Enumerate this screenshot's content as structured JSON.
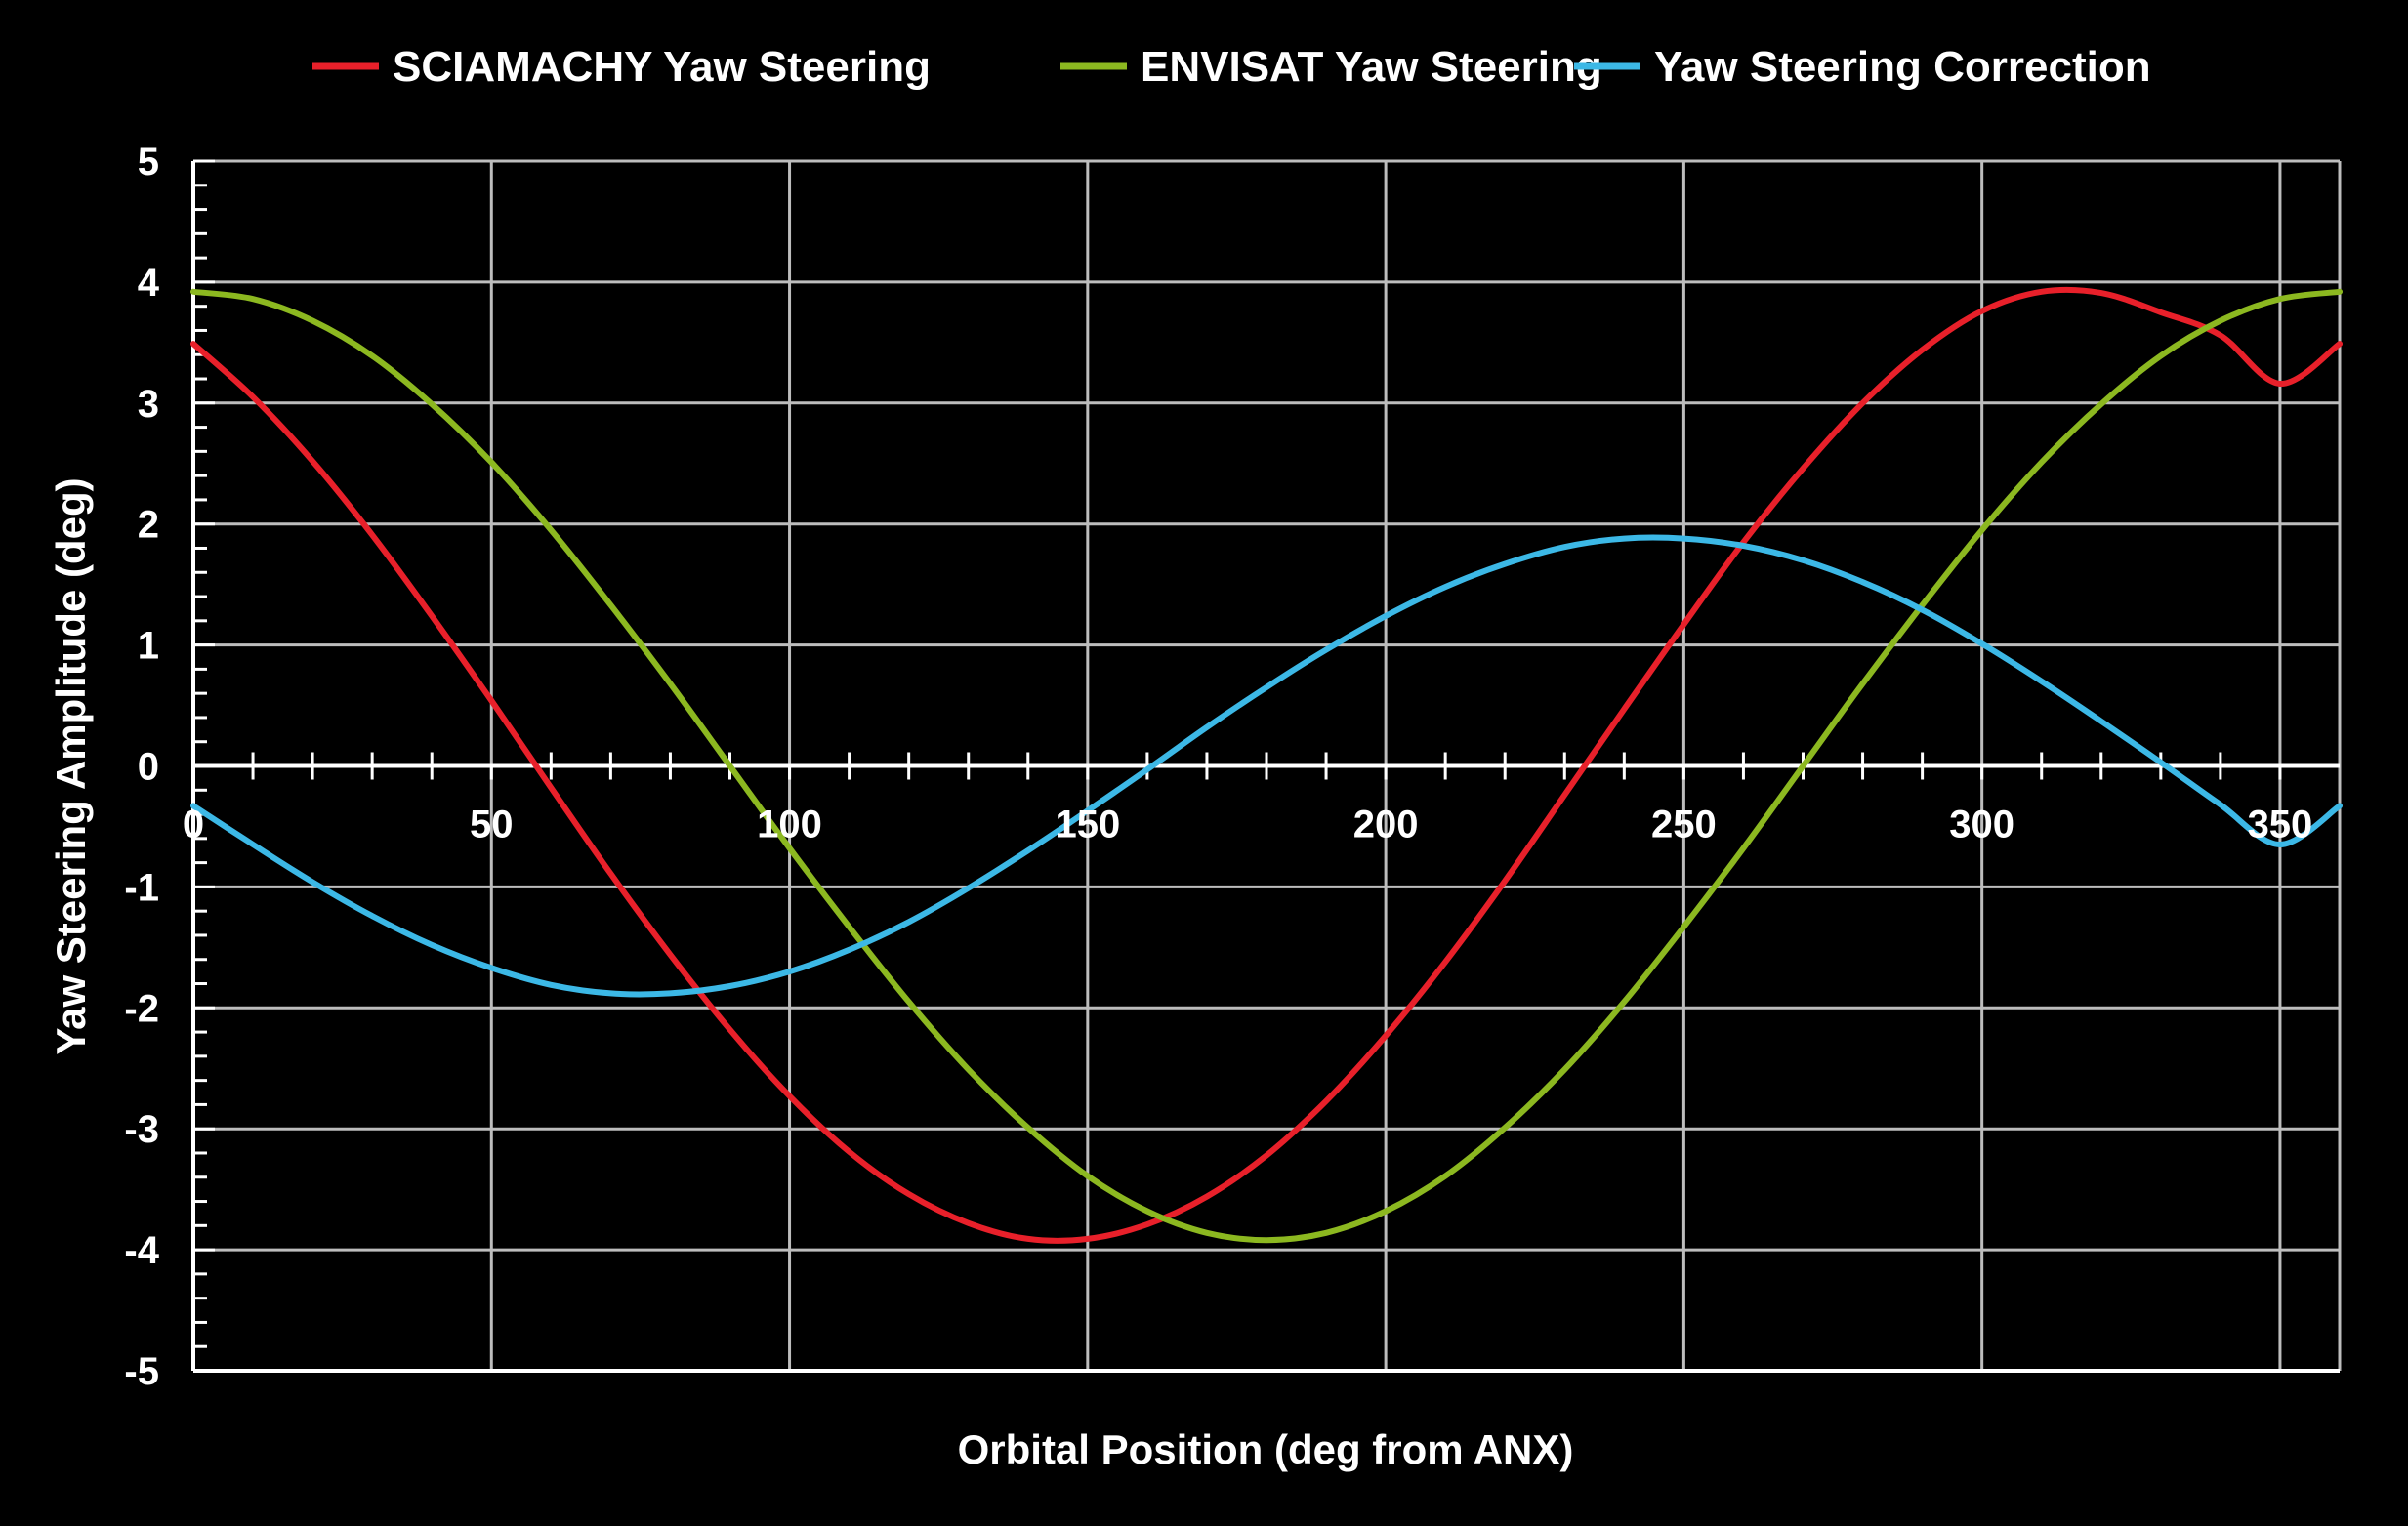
{
  "chart_data": {
    "type": "line",
    "title": "",
    "xlabel": "Orbital Position (deg from ANX)",
    "ylabel": "Yaw Steering Amplitude (deg)",
    "xlim": [
      0,
      360
    ],
    "ylim": [
      -5,
      5
    ],
    "x_ticks": [
      "0",
      "50",
      "100",
      "150",
      "200",
      "250",
      "300",
      "350"
    ],
    "y_ticks": [
      "5",
      "4",
      "3",
      "2",
      "1",
      "0",
      "-1",
      "-2",
      "-3",
      "-4",
      "-5"
    ],
    "grid": true,
    "legend_position": "top",
    "x": [
      0,
      10,
      20,
      30,
      40,
      50,
      60,
      70,
      80,
      90,
      100,
      110,
      120,
      130,
      140,
      150,
      160,
      170,
      180,
      190,
      200,
      210,
      220,
      230,
      240,
      250,
      260,
      270,
      280,
      290,
      300,
      310,
      320,
      330,
      340,
      350,
      360
    ],
    "series": [
      {
        "name": "SCIAMACHY Yaw Steering",
        "color": "#e8202a",
        "values": [
          3.49,
          3.05,
          2.52,
          1.91,
          1.24,
          0.54,
          -0.18,
          -0.89,
          -1.56,
          -2.18,
          -2.73,
          -3.19,
          -3.54,
          -3.78,
          -3.91,
          -3.91,
          -3.79,
          -3.56,
          -3.22,
          -2.77,
          -2.23,
          -1.62,
          -0.95,
          -0.24,
          0.47,
          1.17,
          1.85,
          2.46,
          3.0,
          3.44,
          3.76,
          3.92,
          3.91,
          3.75,
          3.56,
          3.16,
          3.49
        ]
      },
      {
        "name": "ENVISAT Yaw Steering",
        "color": "#8cb820",
        "values": [
          3.92,
          3.86,
          3.68,
          3.39,
          2.99,
          2.51,
          1.95,
          1.33,
          0.68,
          0.0,
          -0.68,
          -1.33,
          -1.95,
          -2.51,
          -2.99,
          -3.39,
          -3.68,
          -3.86,
          -3.92,
          -3.86,
          -3.68,
          -3.39,
          -2.99,
          -2.51,
          -1.95,
          -1.33,
          -0.68,
          0.0,
          0.68,
          1.33,
          1.95,
          2.51,
          2.99,
          3.39,
          3.68,
          3.86,
          3.92
        ]
      },
      {
        "name": "Yaw Steering Correction",
        "color": "#3cb8e6",
        "values": [
          -0.33,
          -0.65,
          -0.96,
          -1.24,
          -1.48,
          -1.67,
          -1.81,
          -1.88,
          -1.88,
          -1.82,
          -1.7,
          -1.52,
          -1.29,
          -1.01,
          -0.7,
          -0.37,
          -0.03,
          0.32,
          0.65,
          0.96,
          1.24,
          1.48,
          1.67,
          1.81,
          1.88,
          1.88,
          1.82,
          1.7,
          1.52,
          1.29,
          1.01,
          0.7,
          0.37,
          0.03,
          -0.32,
          -0.65,
          -0.33
        ]
      }
    ]
  }
}
